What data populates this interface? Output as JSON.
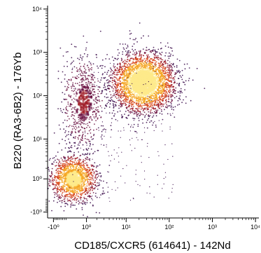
{
  "chart_data": {
    "type": "scatter",
    "subtype": "flow-cytometry density plot",
    "xlabel": "CD185/CXCR5 (614641) - 142Nd",
    "ylabel": "B220 (RA3-6B2) - 176Yb",
    "x_scale": "arcsinh (biexponential)",
    "y_scale": "arcsinh (biexponential)",
    "x_ticks": [
      {
        "value": -1,
        "label": "-10⁰"
      },
      {
        "value": 1,
        "label": "10⁰"
      },
      {
        "value": 10,
        "label": "10¹"
      },
      {
        "value": 100,
        "label": "10²"
      },
      {
        "value": 1000,
        "label": "10³"
      },
      {
        "value": 10000,
        "label": "10⁴"
      }
    ],
    "y_ticks": [
      {
        "value": -1,
        "label": "-10⁰"
      },
      {
        "value": 1,
        "label": "10⁰"
      },
      {
        "value": 10,
        "label": "10¹"
      },
      {
        "value": 100,
        "label": "10²"
      },
      {
        "value": 1000,
        "label": "10³"
      },
      {
        "value": 10000,
        "label": "10⁴"
      }
    ],
    "xlim": [
      -1.5,
      12000
    ],
    "ylim": [
      -1.5,
      12000
    ],
    "colormap": [
      "#3a0a4a",
      "#6a1040",
      "#a11f2a",
      "#d8481a",
      "#f5a623",
      "#fde98a"
    ],
    "populations": [
      {
        "center_x": 25,
        "center_y": 200,
        "relative_density": 1.0
      },
      {
        "center_x": 0.2,
        "center_y": 1.0,
        "relative_density": 0.9
      },
      {
        "center_x": 0.8,
        "center_y": 70,
        "relative_density": 0.35
      }
    ],
    "grid": false,
    "legend": "none"
  }
}
